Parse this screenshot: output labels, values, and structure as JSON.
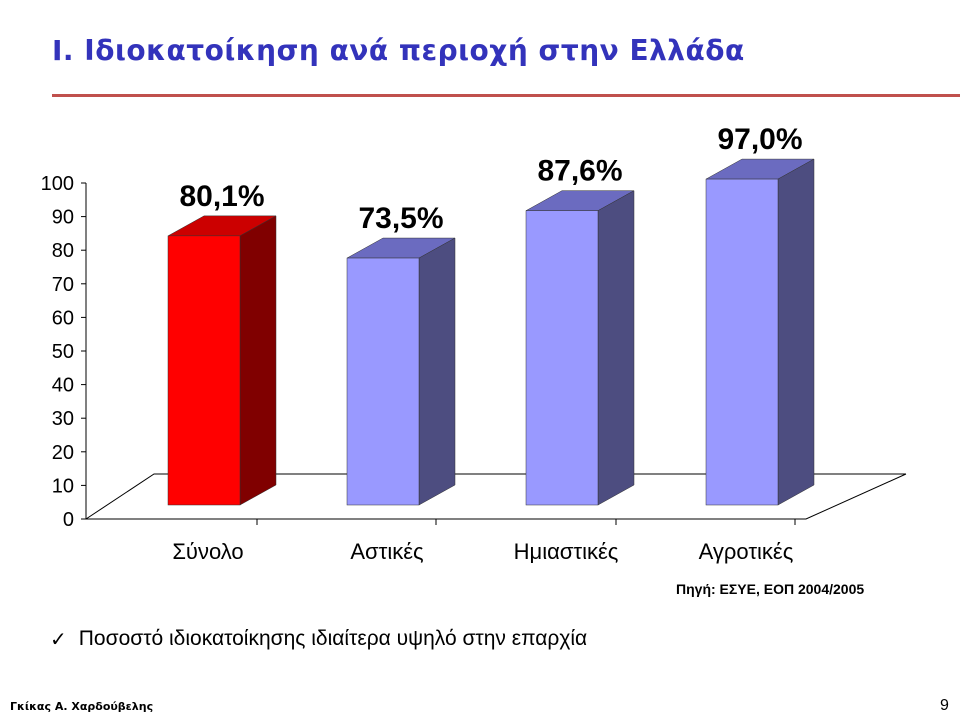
{
  "slide": {
    "title": "I.  Ιδιοκατοίκηση ανά περιοχή στην Ελλάδα",
    "source": "Πηγή: ΕΣΥΕ, ΕΟΠ 2004/2005",
    "bullet_icon": "check-icon",
    "bullet_text": "Ποσοστό ιδιοκατοίκησης ιδιαίτερα υψηλό στην επαρχία",
    "author": "Γκίκας Α. Χαρδούβελης",
    "page_number": "9"
  },
  "chart_data": {
    "type": "bar",
    "categories": [
      "Σύνολο",
      "Αστικές",
      "Ημιαστικές",
      "Αγροτικές"
    ],
    "values": [
      80.1,
      73.5,
      87.6,
      97.0
    ],
    "data_labels": [
      "80,1%",
      "73,5%",
      "87,6%",
      "97,0%"
    ],
    "yticks": [
      "0",
      "10",
      "20",
      "30",
      "40",
      "50",
      "60",
      "70",
      "80",
      "90",
      "100"
    ],
    "ylim": [
      0,
      100
    ],
    "grid": false,
    "style": "3d",
    "colors": {
      "highlight_front": "#ff0000",
      "highlight_top": "#cc0000",
      "highlight_side": "#800000",
      "front": "#9999ff",
      "top": "#6b6bc0",
      "side": "#4d4d80"
    },
    "highlight_index": 0
  }
}
